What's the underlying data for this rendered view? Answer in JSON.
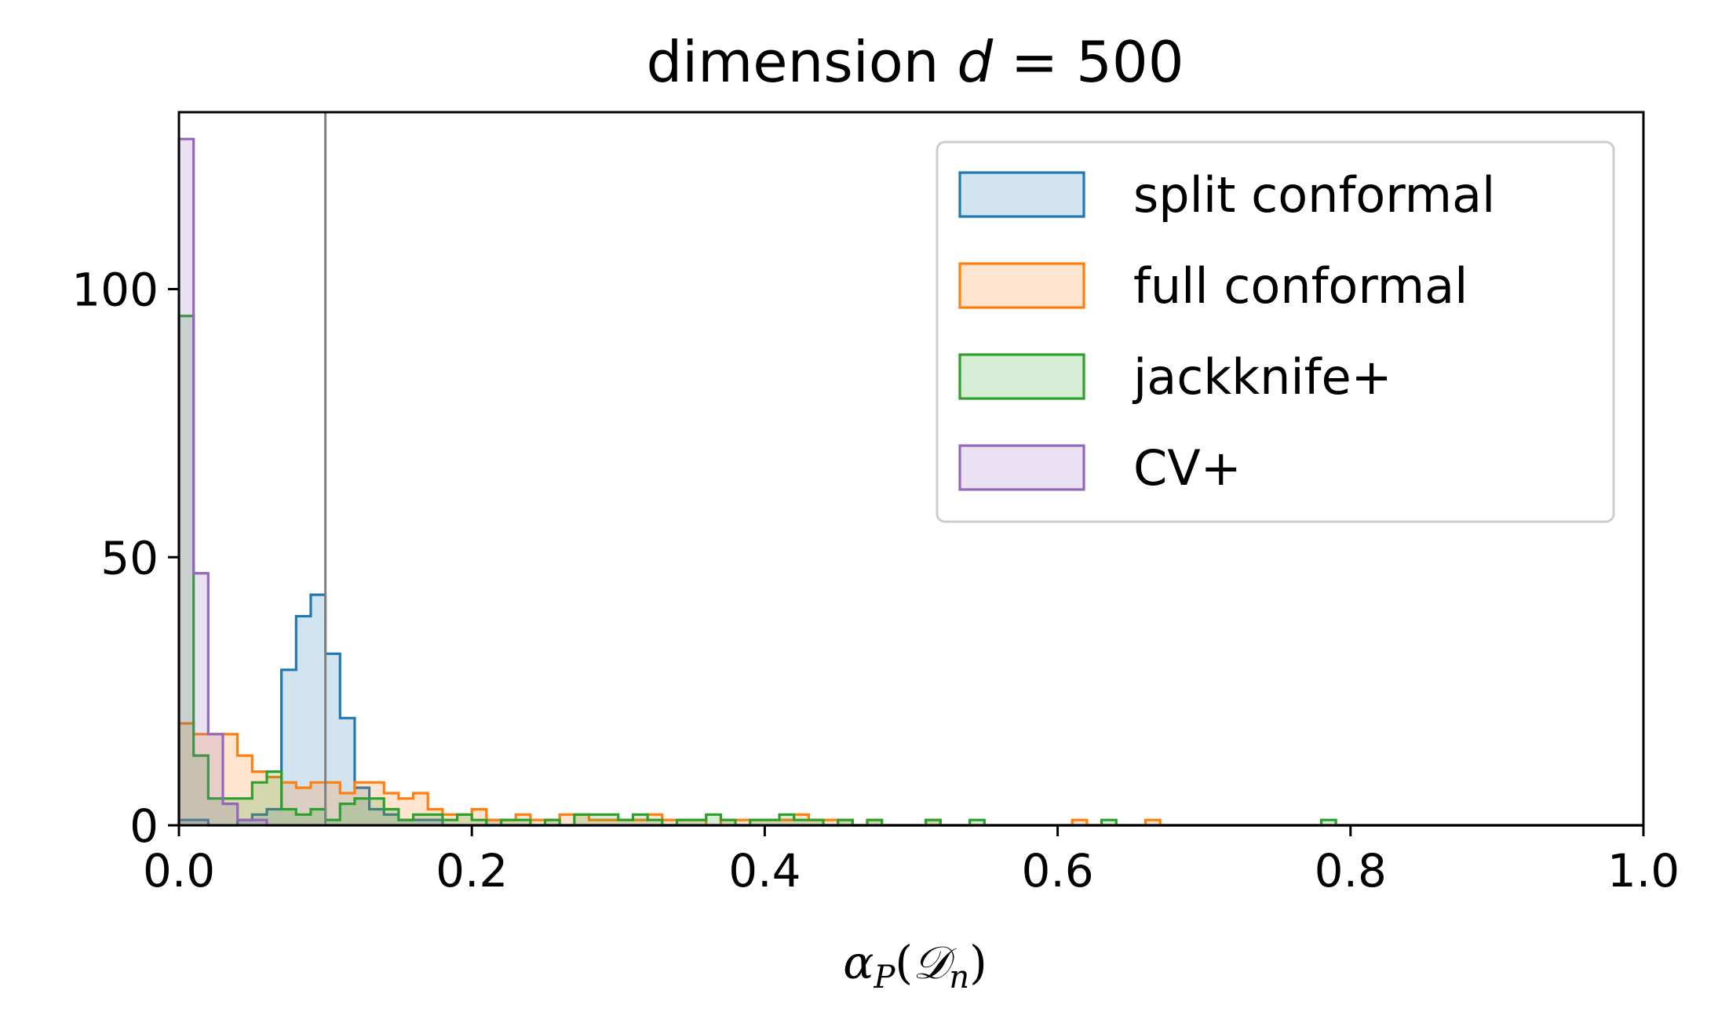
{
  "chart_data": {
    "type": "histogram",
    "title": "dimension d = 500",
    "title_parts": {
      "prefix": "dimension ",
      "var": "d",
      "suffix": " = 500"
    },
    "xlabel": "αP(𝒟n)",
    "xlabel_parts": {
      "alpha": "α",
      "sub_p": "P",
      "open": "(",
      "D": "𝒟",
      "sub_n": "n",
      "close": ")"
    },
    "xlim": [
      0.0,
      1.0
    ],
    "ylim": [
      0,
      133
    ],
    "xticks": [
      0.0,
      0.2,
      0.4,
      0.6,
      0.8,
      1.0
    ],
    "xtick_labels": [
      "0.0",
      "0.2",
      "0.4",
      "0.6",
      "0.8",
      "1.0"
    ],
    "yticks": [
      0,
      50,
      100
    ],
    "ytick_labels": [
      "0",
      "50",
      "100"
    ],
    "grid": false,
    "legend_position": "top-right",
    "reference_line": {
      "x": 0.1,
      "color": "#808080"
    },
    "bin_width": 0.01,
    "series": [
      {
        "name": "split conformal",
        "color": "#1f77b4",
        "counts": [
          1,
          1,
          0,
          0,
          1,
          2,
          3,
          29,
          39,
          43,
          32,
          20,
          7,
          3,
          2,
          1,
          1,
          1,
          0,
          0,
          0,
          1,
          0,
          0,
          0,
          0,
          0,
          0,
          0,
          0,
          0,
          0,
          0,
          0,
          0,
          0,
          0,
          0,
          0,
          0,
          0,
          0,
          0,
          0,
          0,
          0,
          0,
          0,
          0,
          0,
          0,
          0,
          0,
          0,
          0,
          0,
          0,
          0,
          0,
          0,
          0,
          0,
          0,
          0,
          0,
          0,
          0,
          0,
          0,
          0,
          0,
          0,
          0,
          0,
          0,
          0,
          0,
          0,
          0,
          0,
          0,
          0,
          0,
          0,
          0,
          0,
          0,
          0,
          0,
          0,
          0,
          0,
          0,
          0,
          0,
          0,
          0,
          0,
          0,
          0
        ]
      },
      {
        "name": "full conformal",
        "color": "#ff7f0e",
        "counts": [
          19,
          17,
          17,
          17,
          13,
          10,
          9,
          8,
          7,
          8,
          8,
          6,
          8,
          8,
          6,
          5,
          6,
          3,
          2,
          2,
          3,
          1,
          1,
          2,
          1,
          1,
          2,
          2,
          1,
          1,
          1,
          1,
          2,
          1,
          1,
          1,
          0,
          1,
          1,
          1,
          1,
          1,
          2,
          1,
          1,
          1,
          0,
          1,
          0,
          0,
          0,
          1,
          0,
          0,
          0,
          0,
          0,
          0,
          0,
          0,
          0,
          1,
          0,
          0,
          0,
          0,
          1,
          0,
          0,
          0,
          0,
          0,
          0,
          0,
          0,
          0,
          0,
          0,
          0,
          0,
          0,
          0,
          0,
          0,
          0,
          0,
          0,
          0,
          0,
          0,
          0,
          0,
          0,
          0,
          0,
          0,
          0,
          0,
          0,
          0
        ]
      },
      {
        "name": "jackknife+",
        "color": "#2ca02c",
        "counts": [
          95,
          13,
          5,
          5,
          5,
          8,
          10,
          3,
          2,
          3,
          1,
          4,
          5,
          5,
          3,
          1,
          2,
          2,
          1,
          2,
          1,
          0,
          1,
          1,
          0,
          1,
          0,
          2,
          2,
          2,
          1,
          2,
          1,
          0,
          1,
          1,
          2,
          1,
          0,
          1,
          1,
          2,
          1,
          1,
          0,
          1,
          0,
          1,
          0,
          0,
          0,
          1,
          0,
          0,
          1,
          0,
          0,
          0,
          0,
          0,
          0,
          0,
          0,
          1,
          0,
          0,
          0,
          0,
          0,
          0,
          0,
          0,
          0,
          0,
          0,
          0,
          0,
          0,
          1,
          0,
          0,
          0,
          0,
          0,
          0,
          0,
          0,
          0,
          0,
          0,
          0,
          0,
          0,
          0,
          0,
          0,
          0,
          0,
          0,
          0
        ]
      },
      {
        "name": "CV+",
        "color": "#9467bd",
        "counts": [
          128,
          47,
          17,
          4,
          1,
          1,
          0,
          0,
          0,
          0,
          0,
          0,
          0,
          0,
          0,
          0,
          0,
          0,
          0,
          0,
          0,
          0,
          0,
          0,
          0,
          0,
          0,
          0,
          0,
          0,
          0,
          0,
          0,
          0,
          0,
          0,
          0,
          0,
          0,
          0,
          0,
          0,
          0,
          0,
          0,
          0,
          0,
          0,
          0,
          0,
          0,
          0,
          0,
          0,
          0,
          0,
          0,
          0,
          0,
          0,
          0,
          0,
          0,
          0,
          0,
          0,
          0,
          0,
          0,
          0,
          0,
          0,
          0,
          0,
          0,
          0,
          0,
          0,
          0,
          0,
          0,
          0,
          0,
          0,
          0,
          0,
          0,
          0,
          0,
          0,
          0,
          0,
          0,
          0,
          0,
          0,
          0,
          0,
          0,
          0
        ]
      }
    ]
  }
}
